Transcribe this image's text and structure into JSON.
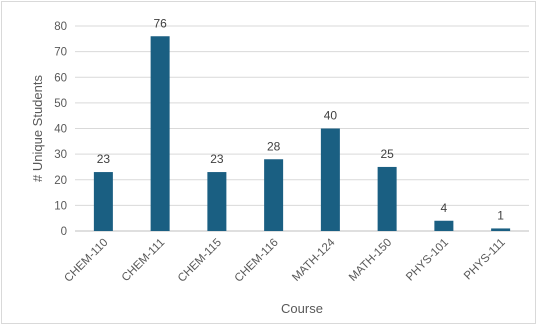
{
  "chart_data": {
    "type": "bar",
    "title": "",
    "xlabel": "Course",
    "ylabel": "# Unique Students",
    "ylim": [
      0,
      80
    ],
    "yticks": [
      0,
      10,
      20,
      30,
      40,
      50,
      60,
      70,
      80
    ],
    "categories": [
      "CHEM-110",
      "CHEM-111",
      "CHEM-115",
      "CHEM-116",
      "MATH-124",
      "MATH-150",
      "PHYS-101",
      "PHYS-111"
    ],
    "values": [
      23,
      76,
      23,
      28,
      40,
      25,
      4,
      1
    ],
    "data_labels": [
      "23",
      "76",
      "23",
      "28",
      "40",
      "25",
      "4",
      "1"
    ],
    "bar_color": "#1a5f82",
    "grid": true,
    "legend": "none"
  }
}
